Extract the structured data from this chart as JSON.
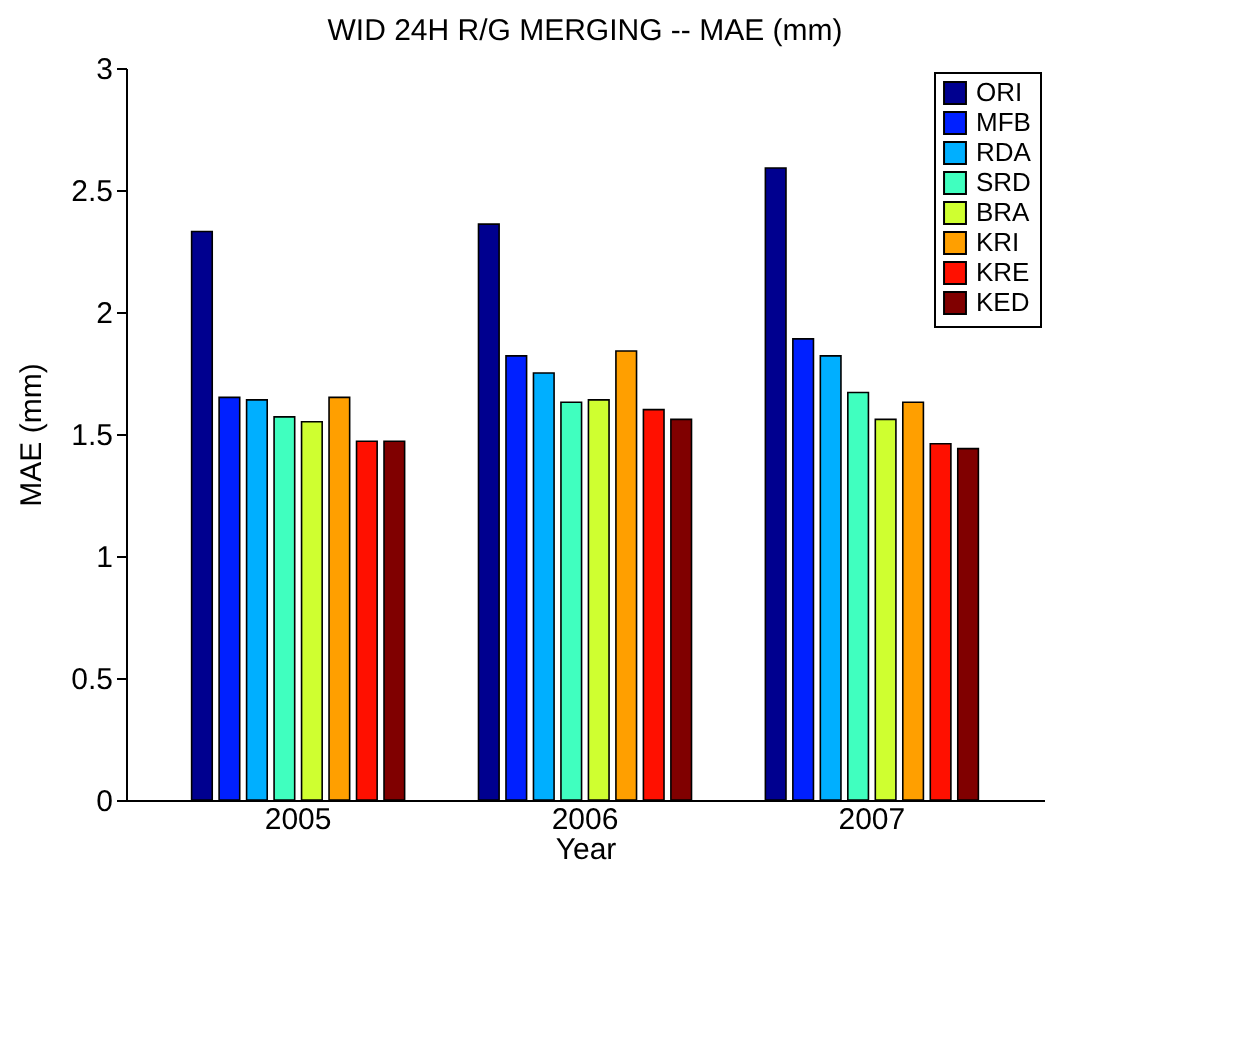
{
  "chart_data": {
    "type": "bar",
    "title": "WID 24H R/G MERGING -- MAE (mm)",
    "xlabel": "Year",
    "ylabel": "MAE (mm)",
    "categories": [
      "2005",
      "2006",
      "2007"
    ],
    "series": [
      {
        "name": "ORI",
        "color": "#00008f",
        "values": [
          2.33,
          2.36,
          2.59
        ]
      },
      {
        "name": "MFB",
        "color": "#0020ff",
        "values": [
          1.65,
          1.82,
          1.89
        ]
      },
      {
        "name": "RDA",
        "color": "#00afff",
        "values": [
          1.64,
          1.75,
          1.82
        ]
      },
      {
        "name": "SRD",
        "color": "#40ffbf",
        "values": [
          1.57,
          1.63,
          1.67
        ]
      },
      {
        "name": "BRA",
        "color": "#cfff30",
        "values": [
          1.55,
          1.64,
          1.56
        ]
      },
      {
        "name": "KRI",
        "color": "#ff9f00",
        "values": [
          1.65,
          1.84,
          1.63
        ]
      },
      {
        "name": "KRE",
        "color": "#ff1000",
        "values": [
          1.47,
          1.6,
          1.46
        ]
      },
      {
        "name": "KED",
        "color": "#800000",
        "values": [
          1.47,
          1.56,
          1.44
        ]
      }
    ],
    "ylim": [
      0,
      3
    ],
    "yticks": [
      0,
      0.5,
      1,
      1.5,
      2,
      2.5,
      3
    ],
    "grid": false,
    "legend": "top right"
  }
}
